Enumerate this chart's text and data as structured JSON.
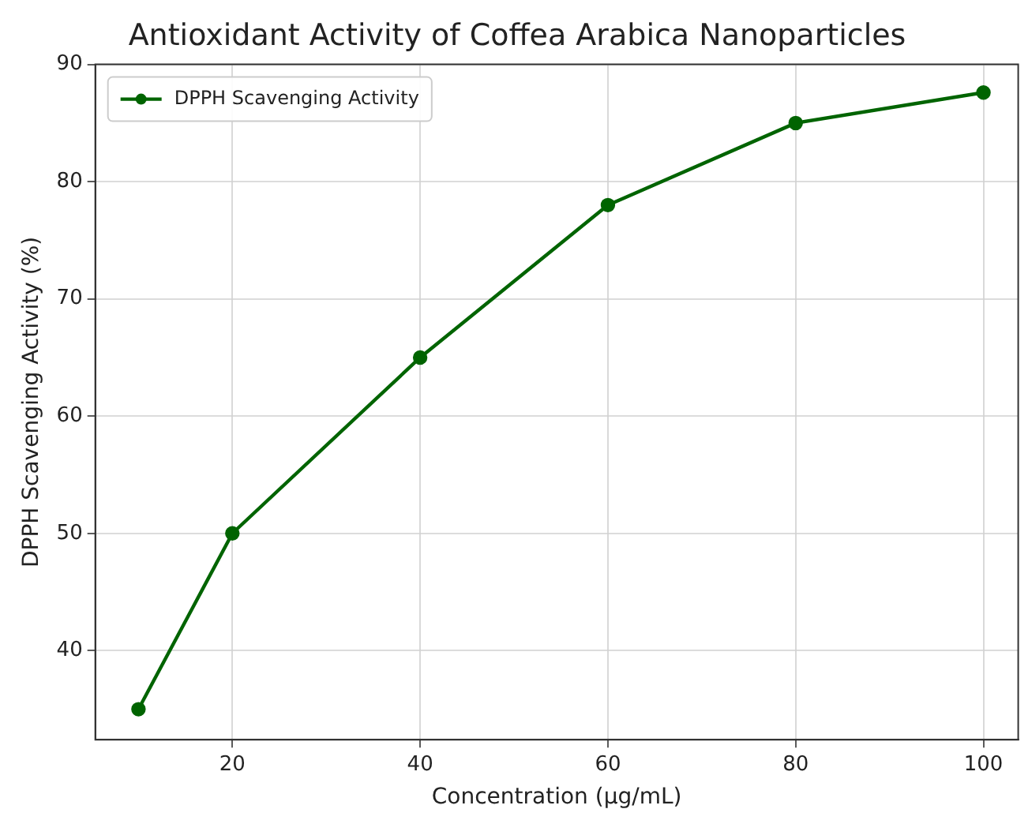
{
  "chart_data": {
    "type": "line",
    "title": "Antioxidant Activity of Coffea Arabica Nanoparticles",
    "xlabel": "Concentration (μg/mL)",
    "ylabel": "DPPH Scavenging Activity (%)",
    "x": [
      10,
      20,
      40,
      60,
      80,
      100
    ],
    "series": [
      {
        "name": "DPPH Scavenging Activity",
        "color": "#006400",
        "values": [
          35,
          50,
          65,
          78,
          85,
          87.6
        ]
      }
    ],
    "xlim": [
      5.4,
      103.7
    ],
    "xticks": [
      20,
      40,
      60,
      80,
      100
    ],
    "ylim": [
      32.4,
      90
    ],
    "yticks": [
      40,
      50,
      60,
      70,
      80,
      90
    ],
    "grid": true,
    "legend": "top left",
    "marker": "circle",
    "line_style": "solid"
  }
}
